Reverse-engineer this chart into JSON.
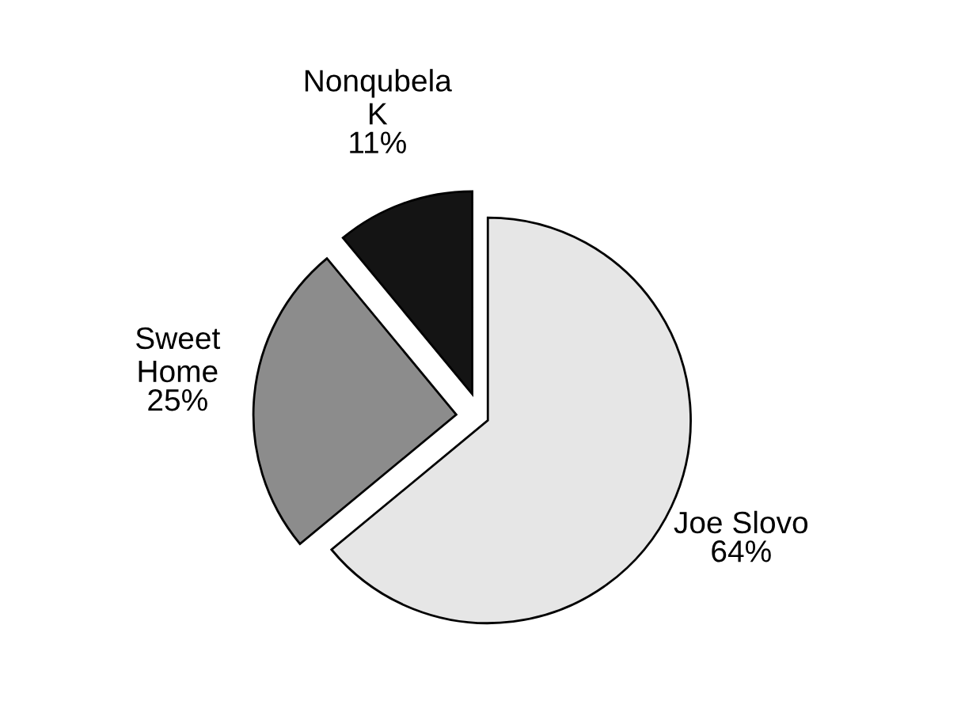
{
  "chart_data": {
    "type": "pie",
    "categories": [
      "Joe Slovo",
      "Sweet\nHome",
      "Nonqubela\nK"
    ],
    "values": [
      64,
      25,
      11
    ],
    "value_labels": [
      "64%",
      "25%",
      "11%"
    ],
    "colors": [
      "#e6e6e6",
      "#8c8c8c",
      "#141414"
    ]
  }
}
